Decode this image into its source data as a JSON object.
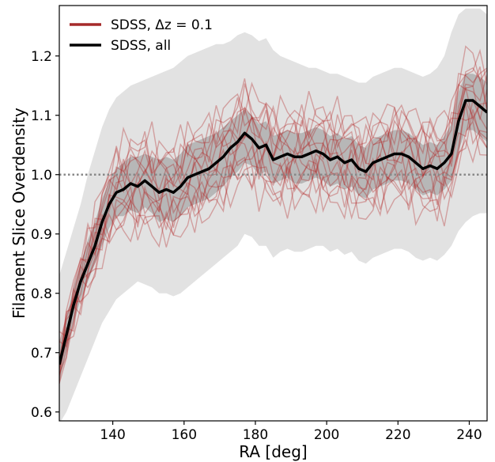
{
  "chart_data": {
    "type": "line",
    "xlabel": "RA [deg]",
    "ylabel": "Filament Slice Overdensity",
    "xlim": [
      125,
      245
    ],
    "ylim": [
      0.585,
      1.285
    ],
    "xticks": [
      140,
      160,
      180,
      200,
      220,
      240
    ],
    "yticks": [
      0.6,
      0.7,
      0.8,
      0.9,
      1.0,
      1.1,
      1.2
    ],
    "xtick_labels": [
      "140",
      "160",
      "180",
      "200",
      "220",
      "240"
    ],
    "ytick_labels": [
      "0.6",
      "0.7",
      "0.8",
      "0.9",
      "1.0",
      "1.1",
      "1.2"
    ],
    "legend": {
      "position": "upper-left",
      "entries": [
        {
          "label": "SDSS, Δz = 0.1",
          "color": "#a52a2a"
        },
        {
          "label": "SDSS, all",
          "color": "#000000"
        }
      ]
    },
    "reference_line": {
      "y": 1.0,
      "style": "dotted",
      "color": "#888888"
    },
    "x": [
      125,
      127,
      129,
      131,
      133,
      135,
      137,
      139,
      141,
      143,
      145,
      147,
      149,
      151,
      153,
      155,
      157,
      159,
      161,
      163,
      165,
      167,
      169,
      171,
      173,
      175,
      177,
      179,
      181,
      183,
      185,
      187,
      189,
      191,
      193,
      195,
      197,
      199,
      201,
      203,
      205,
      207,
      209,
      211,
      213,
      215,
      217,
      219,
      221,
      223,
      225,
      227,
      229,
      231,
      233,
      235,
      237,
      239,
      241,
      243,
      245
    ],
    "series": [
      {
        "name": "SDSS, all",
        "color": "#000000",
        "values": [
          0.68,
          0.73,
          0.78,
          0.82,
          0.85,
          0.88,
          0.92,
          0.95,
          0.97,
          0.975,
          0.985,
          0.98,
          0.99,
          0.98,
          0.97,
          0.975,
          0.97,
          0.98,
          0.995,
          1.0,
          1.005,
          1.01,
          1.02,
          1.03,
          1.045,
          1.055,
          1.07,
          1.06,
          1.045,
          1.05,
          1.025,
          1.03,
          1.035,
          1.03,
          1.03,
          1.035,
          1.04,
          1.035,
          1.025,
          1.03,
          1.02,
          1.025,
          1.01,
          1.005,
          1.02,
          1.025,
          1.03,
          1.035,
          1.035,
          1.03,
          1.02,
          1.01,
          1.015,
          1.01,
          1.02,
          1.035,
          1.09,
          1.125,
          1.125,
          1.115,
          1.105
        ]
      }
    ],
    "bands": [
      {
        "name": "outer",
        "color": "#e2e2e2",
        "upper": [
          0.83,
          0.87,
          0.91,
          0.95,
          1.0,
          1.04,
          1.08,
          1.11,
          1.13,
          1.14,
          1.15,
          1.155,
          1.16,
          1.165,
          1.17,
          1.175,
          1.18,
          1.19,
          1.2,
          1.205,
          1.21,
          1.215,
          1.22,
          1.22,
          1.225,
          1.235,
          1.24,
          1.235,
          1.225,
          1.23,
          1.21,
          1.2,
          1.195,
          1.19,
          1.185,
          1.18,
          1.18,
          1.175,
          1.17,
          1.17,
          1.165,
          1.16,
          1.155,
          1.155,
          1.165,
          1.17,
          1.175,
          1.18,
          1.18,
          1.175,
          1.17,
          1.165,
          1.17,
          1.18,
          1.2,
          1.24,
          1.27,
          1.28,
          1.28,
          1.28,
          1.27
        ],
        "lower": [
          0.58,
          0.6,
          0.63,
          0.66,
          0.69,
          0.72,
          0.75,
          0.77,
          0.79,
          0.8,
          0.81,
          0.82,
          0.815,
          0.81,
          0.8,
          0.8,
          0.795,
          0.8,
          0.81,
          0.82,
          0.83,
          0.84,
          0.85,
          0.86,
          0.87,
          0.88,
          0.9,
          0.895,
          0.88,
          0.88,
          0.86,
          0.87,
          0.875,
          0.87,
          0.87,
          0.875,
          0.88,
          0.88,
          0.87,
          0.875,
          0.865,
          0.87,
          0.855,
          0.85,
          0.86,
          0.865,
          0.87,
          0.875,
          0.875,
          0.87,
          0.86,
          0.855,
          0.86,
          0.855,
          0.865,
          0.88,
          0.905,
          0.92,
          0.93,
          0.935,
          0.935
        ]
      },
      {
        "name": "inner",
        "color": "#a8a8a8",
        "upper": [
          0.71,
          0.76,
          0.81,
          0.85,
          0.89,
          0.92,
          0.96,
          0.99,
          1.01,
          1.02,
          1.03,
          1.03,
          1.035,
          1.03,
          1.025,
          1.03,
          1.025,
          1.035,
          1.05,
          1.055,
          1.06,
          1.065,
          1.07,
          1.08,
          1.09,
          1.1,
          1.11,
          1.1,
          1.085,
          1.09,
          1.065,
          1.07,
          1.075,
          1.07,
          1.07,
          1.075,
          1.08,
          1.075,
          1.065,
          1.07,
          1.06,
          1.065,
          1.05,
          1.045,
          1.06,
          1.065,
          1.07,
          1.075,
          1.075,
          1.07,
          1.06,
          1.05,
          1.055,
          1.05,
          1.065,
          1.085,
          1.14,
          1.17,
          1.17,
          1.165,
          1.155
        ],
        "lower": [
          0.65,
          0.7,
          0.75,
          0.79,
          0.82,
          0.85,
          0.88,
          0.91,
          0.93,
          0.93,
          0.94,
          0.935,
          0.945,
          0.935,
          0.92,
          0.925,
          0.92,
          0.93,
          0.945,
          0.95,
          0.955,
          0.96,
          0.97,
          0.98,
          0.995,
          1.005,
          1.02,
          1.015,
          1.0,
          1.005,
          0.985,
          0.99,
          0.995,
          0.985,
          0.985,
          0.99,
          0.995,
          0.99,
          0.98,
          0.985,
          0.975,
          0.98,
          0.965,
          0.96,
          0.975,
          0.98,
          0.985,
          0.99,
          0.99,
          0.985,
          0.975,
          0.965,
          0.97,
          0.965,
          0.975,
          0.99,
          1.04,
          1.075,
          1.075,
          1.065,
          1.055
        ]
      }
    ],
    "subsample_offsets": [
      0.0,
      0.03,
      -0.03,
      0.05,
      -0.05,
      0.015,
      -0.015,
      0.04,
      -0.04,
      0.06,
      -0.06,
      0.025,
      -0.025,
      0.07,
      -0.07
    ],
    "subsample_color": "#b22222"
  }
}
